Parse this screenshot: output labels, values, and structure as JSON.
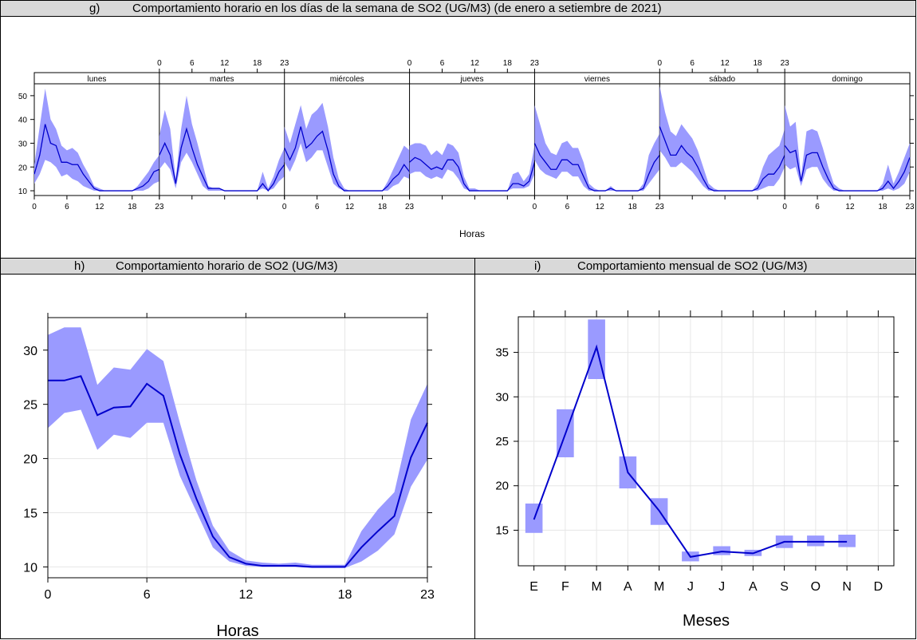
{
  "panels": {
    "g": {
      "letter": "g)",
      "title": "Comportamiento horario en los días de la semana de SO2 (UG/M3) (de enero a setiembre de 2021)"
    },
    "h": {
      "letter": "h)",
      "title": "Comportamiento horario de SO2 (UG/M3)"
    },
    "i": {
      "letter": "i)",
      "title": "Comportamiento mensual de SO2 (UG/M3)"
    }
  },
  "chart_data": [
    {
      "id": "g",
      "type": "line",
      "xlabel": "Horas",
      "ylabel": "",
      "ylim": [
        8,
        55
      ],
      "yticks": [
        10,
        20,
        30,
        40,
        50
      ],
      "xticks": [
        0,
        6,
        12,
        18,
        23
      ],
      "days": [
        "lunes",
        "martes",
        "miércoles",
        "jueves",
        "viernes",
        "sábado",
        "domingo"
      ],
      "grid": false,
      "band_color": "#9a9aff",
      "line_color": "#0000cc",
      "series": [
        {
          "values": [
            17,
            25,
            38,
            30,
            29,
            22,
            22,
            21,
            21,
            17,
            14,
            11,
            10,
            10,
            10,
            10,
            10,
            10,
            10,
            11,
            12,
            14,
            18,
            19
          ],
          "lower": [
            13,
            17,
            23,
            22,
            20,
            16,
            17,
            15,
            14,
            12,
            11,
            10,
            10,
            10,
            10,
            10,
            10,
            10,
            10,
            10,
            10,
            11,
            13,
            14
          ],
          "upper": [
            21,
            37,
            53,
            40,
            36,
            29,
            27,
            28,
            26,
            21,
            17,
            12,
            11,
            10,
            10,
            10,
            10,
            10,
            10,
            12,
            15,
            18,
            22,
            25
          ]
        },
        {
          "values": [
            25,
            30,
            25,
            13,
            28,
            36,
            28,
            21,
            16,
            11,
            11,
            11,
            10,
            10,
            10,
            10,
            10,
            10,
            10,
            13,
            10,
            13,
            18,
            21
          ],
          "lower": [
            19,
            22,
            19,
            11,
            22,
            26,
            22,
            17,
            12,
            10,
            10,
            10,
            10,
            10,
            10,
            10,
            10,
            10,
            10,
            11,
            10,
            11,
            14,
            16
          ],
          "upper": [
            33,
            44,
            36,
            15,
            36,
            50,
            38,
            30,
            21,
            12,
            11,
            11,
            10,
            10,
            10,
            10,
            10,
            10,
            10,
            18,
            11,
            16,
            23,
            28
          ]
        },
        {
          "values": [
            28,
            23,
            28,
            37,
            28,
            30,
            33,
            35,
            27,
            17,
            12,
            10,
            10,
            10,
            10,
            10,
            10,
            10,
            10,
            12,
            15,
            17,
            21,
            18
          ],
          "lower": [
            22,
            18,
            23,
            30,
            22,
            24,
            27,
            27,
            20,
            13,
            11,
            10,
            10,
            10,
            10,
            10,
            10,
            10,
            10,
            10,
            12,
            13,
            16,
            15
          ],
          "upper": [
            37,
            30,
            38,
            46,
            36,
            42,
            44,
            47,
            37,
            24,
            15,
            11,
            10,
            10,
            10,
            10,
            10,
            10,
            10,
            14,
            19,
            24,
            29,
            27
          ]
        },
        {
          "values": [
            22,
            24,
            23,
            21,
            19,
            20,
            19,
            23,
            23,
            20,
            13,
            10,
            10,
            10,
            10,
            10,
            10,
            10,
            10,
            13,
            13,
            12,
            14,
            22
          ],
          "lower": [
            17,
            18,
            18,
            16,
            15,
            16,
            15,
            19,
            18,
            15,
            11,
            10,
            10,
            10,
            10,
            10,
            10,
            10,
            10,
            11,
            11,
            11,
            12,
            17
          ],
          "upper": [
            29,
            30,
            30,
            29,
            25,
            27,
            25,
            30,
            29,
            26,
            16,
            11,
            11,
            10,
            10,
            10,
            10,
            10,
            10,
            17,
            18,
            14,
            17,
            29
          ]
        },
        {
          "values": [
            30,
            25,
            22,
            19,
            19,
            23,
            23,
            21,
            21,
            16,
            11,
            10,
            10,
            10,
            11,
            10,
            10,
            10,
            10,
            10,
            11,
            17,
            22,
            25
          ],
          "lower": [
            23,
            19,
            17,
            16,
            15,
            18,
            18,
            16,
            16,
            12,
            10,
            10,
            10,
            10,
            10,
            10,
            10,
            10,
            10,
            10,
            10,
            13,
            16,
            19
          ],
          "upper": [
            46,
            38,
            30,
            26,
            25,
            30,
            31,
            28,
            28,
            22,
            13,
            11,
            10,
            10,
            12,
            10,
            10,
            10,
            10,
            10,
            13,
            25,
            30,
            34
          ]
        },
        {
          "values": [
            37,
            31,
            25,
            25,
            29,
            26,
            24,
            20,
            15,
            11,
            10,
            10,
            10,
            10,
            10,
            10,
            10,
            10,
            11,
            15,
            17,
            17,
            20,
            25
          ],
          "lower": [
            27,
            24,
            20,
            20,
            22,
            20,
            18,
            15,
            12,
            10,
            10,
            10,
            10,
            10,
            10,
            10,
            10,
            10,
            10,
            11,
            12,
            12,
            15,
            20
          ],
          "upper": [
            54,
            43,
            35,
            33,
            38,
            35,
            32,
            27,
            20,
            13,
            11,
            10,
            10,
            10,
            10,
            10,
            10,
            10,
            13,
            20,
            25,
            27,
            29,
            36
          ]
        },
        {
          "values": [
            29,
            26,
            27,
            14,
            25,
            26,
            26,
            20,
            15,
            11,
            10,
            10,
            10,
            10,
            10,
            10,
            10,
            10,
            11,
            14,
            11,
            14,
            18,
            24
          ],
          "lower": [
            21,
            19,
            20,
            12,
            19,
            20,
            20,
            15,
            12,
            10,
            10,
            10,
            10,
            10,
            10,
            10,
            10,
            10,
            10,
            11,
            10,
            11,
            13,
            18
          ],
          "upper": [
            46,
            37,
            39,
            16,
            35,
            36,
            35,
            28,
            20,
            13,
            11,
            10,
            10,
            10,
            10,
            10,
            10,
            10,
            13,
            21,
            13,
            18,
            24,
            30
          ]
        }
      ]
    },
    {
      "id": "h",
      "type": "line",
      "xlabel": "Horas",
      "ylabel": "",
      "ylim": [
        9,
        33
      ],
      "yticks": [
        10,
        15,
        20,
        25,
        30
      ],
      "xticks": [
        0,
        6,
        12,
        18,
        23
      ],
      "grid": true,
      "band_color": "#9a9aff",
      "line_color": "#0000cc",
      "x": [
        0,
        1,
        2,
        3,
        4,
        5,
        6,
        7,
        8,
        9,
        10,
        11,
        12,
        13,
        14,
        15,
        16,
        17,
        18,
        19,
        20,
        21,
        22,
        23
      ],
      "values": [
        27.2,
        27.2,
        27.6,
        24.0,
        24.7,
        24.8,
        26.9,
        25.8,
        20.4,
        16.3,
        12.8,
        10.9,
        10.3,
        10.1,
        10.1,
        10.1,
        10.0,
        10.0,
        10.0,
        11.8,
        13.3,
        14.7,
        20.1,
        23.3
      ],
      "lower": [
        22.8,
        24.2,
        24.5,
        20.8,
        22.2,
        21.9,
        23.3,
        23.3,
        18.4,
        15.1,
        11.8,
        10.5,
        10.1,
        10.0,
        10.0,
        10.0,
        9.9,
        9.9,
        9.9,
        10.5,
        11.5,
        13.0,
        17.4,
        19.9
      ],
      "upper": [
        31.4,
        32.1,
        32.1,
        26.8,
        28.4,
        28.2,
        30.1,
        29.0,
        23.3,
        18.0,
        13.8,
        11.5,
        10.6,
        10.4,
        10.3,
        10.4,
        10.2,
        10.2,
        10.2,
        13.3,
        15.3,
        16.9,
        23.6,
        26.9
      ]
    },
    {
      "id": "i",
      "type": "line",
      "xlabel": "Meses",
      "ylabel": "",
      "ylim": [
        11,
        39
      ],
      "yticks": [
        15,
        20,
        25,
        30,
        35
      ],
      "categories": [
        "E",
        "F",
        "M",
        "A",
        "M",
        "J",
        "J",
        "A",
        "S",
        "O",
        "N",
        "D"
      ],
      "grid": true,
      "band_color": "#9a9aff",
      "line_color": "#0000cc",
      "values": [
        16.2,
        25.8,
        35.6,
        21.5,
        17.2,
        12.0,
        12.6,
        12.4,
        13.7,
        13.7,
        13.7,
        null
      ],
      "lower": [
        14.7,
        23.2,
        32.0,
        19.7,
        15.6,
        11.5,
        12.2,
        12.1,
        13.0,
        13.2,
        13.1,
        null
      ],
      "upper": [
        18.0,
        28.6,
        38.7,
        23.3,
        18.6,
        12.6,
        13.2,
        12.8,
        14.4,
        14.4,
        14.5,
        null
      ]
    }
  ]
}
